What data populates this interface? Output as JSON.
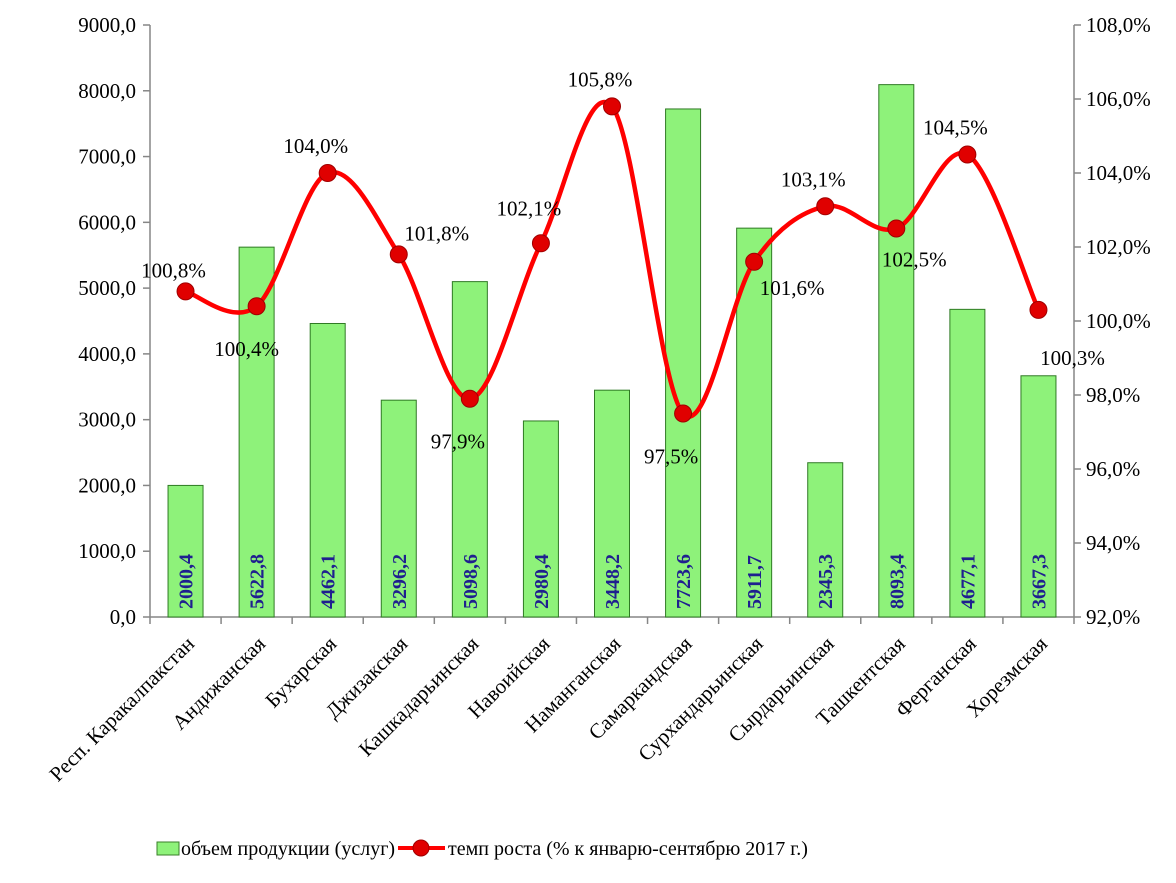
{
  "chart_data": {
    "type": "bar+line",
    "categories": [
      "Респ. Каракалпакстан",
      "Андижанская",
      "Бухарская",
      "Джизакская",
      "Кашкадарьинская",
      "Навоийская",
      "Наманганская",
      "Самаркандская",
      "Сурхандарьинская",
      "Сырдарьинская",
      "Ташкентская",
      "Ферганская",
      "Хорезмская"
    ],
    "series": [
      {
        "name": "объем продукции (услуг)",
        "type": "bar",
        "axis": "left",
        "color": "#8ef27a",
        "values": [
          2000.4,
          5622.8,
          4462.1,
          3296.2,
          5098.6,
          2980.4,
          3448.2,
          7723.6,
          5911.7,
          2345.3,
          8093.4,
          4677.1,
          3667.3
        ],
        "labels": [
          "2000,4",
          "5622,8",
          "4462,1",
          "3296,2",
          "5098,6",
          "2980,4",
          "3448,2",
          "7723,6",
          "5911,7",
          "2345,3",
          "8093,4",
          "4677,1",
          "3667,3"
        ]
      },
      {
        "name": "темп роста (% к январю-сентябрю 2017 г.)",
        "type": "line",
        "axis": "right",
        "color": "#ff0000",
        "values": [
          100.8,
          100.4,
          104.0,
          101.8,
          97.9,
          102.1,
          105.8,
          97.5,
          101.6,
          103.1,
          102.5,
          104.5,
          100.3
        ],
        "labels": [
          "100,8%",
          "100,4%",
          "104,0%",
          "101,8%",
          "97,9%",
          "102,1%",
          "105,8%",
          "97,5%",
          "101,6%",
          "103,1%",
          "102,5%",
          "104,5%",
          "100,3%"
        ]
      }
    ],
    "y_left": {
      "range": [
        0,
        9000
      ],
      "ticks": [
        0,
        1000,
        2000,
        3000,
        4000,
        5000,
        6000,
        7000,
        8000,
        9000
      ],
      "tick_labels": [
        "0,0",
        "1000,0",
        "2000,0",
        "3000,0",
        "4000,0",
        "5000,0",
        "6000,0",
        "7000,0",
        "8000,0",
        "9000,0"
      ]
    },
    "y_right": {
      "range": [
        92,
        108
      ],
      "ticks": [
        92,
        94,
        96,
        98,
        100,
        102,
        104,
        106,
        108
      ],
      "tick_labels": [
        "92,0%",
        "94,0%",
        "96,0%",
        "98,0%",
        "100,0%",
        "102,0%",
        "104,0%",
        "106,0%",
        "108,0%"
      ]
    },
    "grid": false,
    "legend": "bottom"
  }
}
